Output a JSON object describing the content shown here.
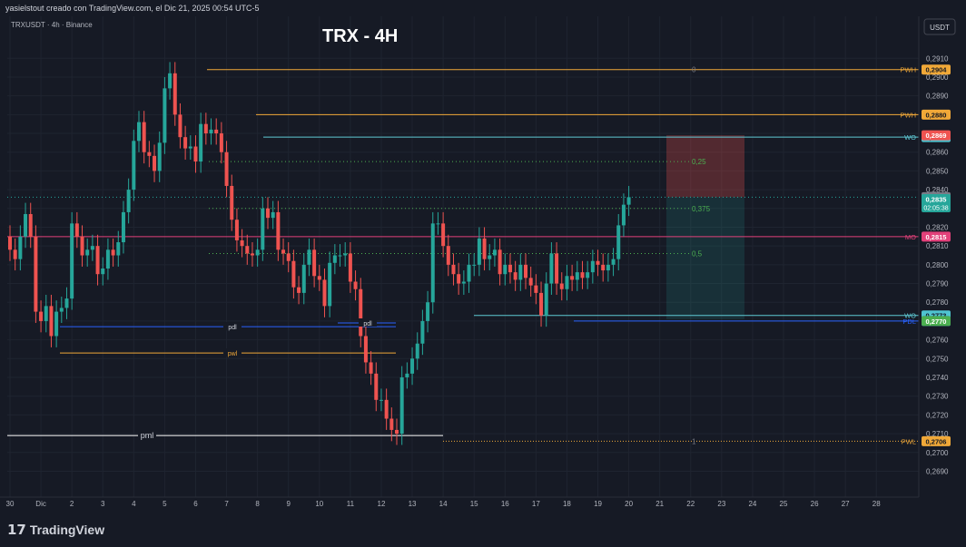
{
  "header": {
    "attribution": "yasielstout creado con TradingView.com, el Dic 21, 2025 00:54 UTC-5",
    "symbol_info": "TRXUSDT · 4h · Binance",
    "title": "TRX - 4H",
    "currency_button": "USDT"
  },
  "footer": {
    "brand": "TradingView",
    "logo_glyph": "17"
  },
  "colors": {
    "bg": "#161a25",
    "up": "#26a69a",
    "down": "#ef5350",
    "grid": "#1f2430"
  },
  "chart_data": {
    "type": "candlestick",
    "title": "TRX - 4H",
    "ylim": [
      0.2682,
      0.2914
    ],
    "y_ticks": [
      "0,2910",
      "0,2900",
      "0,2890",
      "0,2880",
      "0,2870",
      "0,2860",
      "0,2850",
      "0,2840",
      "0,2830",
      "0,2820",
      "0,2810",
      "0,2800",
      "0,2790",
      "0,2780",
      "0,2770",
      "0,2760",
      "0,2750",
      "0,2740",
      "0,2730",
      "0,2720",
      "0,2710",
      "0,2700",
      "0,2690"
    ],
    "x_labels": [
      {
        "label": "30",
        "i": 0
      },
      {
        "label": "Dic",
        "i": 6
      },
      {
        "label": "2",
        "i": 12
      },
      {
        "label": "3",
        "i": 18
      },
      {
        "label": "4",
        "i": 24
      },
      {
        "label": "5",
        "i": 30
      },
      {
        "label": "6",
        "i": 36
      },
      {
        "label": "7",
        "i": 42
      },
      {
        "label": "8",
        "i": 48
      },
      {
        "label": "9",
        "i": 54
      },
      {
        "label": "10",
        "i": 60
      },
      {
        "label": "11",
        "i": 66
      },
      {
        "label": "12",
        "i": 72
      },
      {
        "label": "13",
        "i": 78
      },
      {
        "label": "14",
        "i": 84
      },
      {
        "label": "15",
        "i": 90
      },
      {
        "label": "16",
        "i": 96
      },
      {
        "label": "17",
        "i": 102
      },
      {
        "label": "18",
        "i": 108
      },
      {
        "label": "19",
        "i": 114
      },
      {
        "label": "20",
        "i": 120
      },
      {
        "label": "21",
        "i": 126
      },
      {
        "label": "22",
        "i": 132
      },
      {
        "label": "23",
        "i": 138
      },
      {
        "label": "24",
        "i": 144
      },
      {
        "label": "25",
        "i": 150
      },
      {
        "label": "26",
        "i": 156
      },
      {
        "label": "27",
        "i": 162
      },
      {
        "label": "28",
        "i": 168
      }
    ],
    "ohlc_close": [
      0.2808,
      0.2803,
      0.2815,
      0.2827,
      0.2815,
      0.2775,
      0.277,
      0.2778,
      0.2762,
      0.2775,
      0.2777,
      0.2782,
      0.2822,
      0.2815,
      0.2805,
      0.2808,
      0.281,
      0.2795,
      0.2798,
      0.2808,
      0.2805,
      0.2812,
      0.2828,
      0.284,
      0.2866,
      0.2876,
      0.286,
      0.2858,
      0.285,
      0.2865,
      0.2894,
      0.2902,
      0.288,
      0.2868,
      0.2862,
      0.2863,
      0.2855,
      0.2875,
      0.287,
      0.2872,
      0.287,
      0.286,
      0.2842,
      0.2824,
      0.2813,
      0.281,
      0.2806,
      0.2805,
      0.2808,
      0.283,
      0.2825,
      0.2828,
      0.2808,
      0.2806,
      0.2802,
      0.2788,
      0.2785,
      0.28,
      0.2808,
      0.2794,
      0.2792,
      0.2778,
      0.2801,
      0.2805,
      0.2805,
      0.2806,
      0.2791,
      0.2787,
      0.2762,
      0.2748,
      0.2742,
      0.2728,
      0.2728,
      0.2718,
      0.2712,
      0.271,
      0.274,
      0.2742,
      0.275,
      0.2758,
      0.277,
      0.278,
      0.2822,
      0.2822,
      0.281,
      0.28,
      0.2795,
      0.279,
      0.2791,
      0.28,
      0.28,
      0.2814,
      0.2803,
      0.2805,
      0.2808,
      0.2795,
      0.28,
      0.2796,
      0.2792,
      0.28,
      0.2793,
      0.2789,
      0.2785,
      0.2773,
      0.279,
      0.2806,
      0.279,
      0.2787,
      0.2794,
      0.2792,
      0.2796,
      0.2793,
      0.2796,
      0.2802,
      0.28,
      0.2797,
      0.28,
      0.2803,
      0.2821,
      0.2832,
      0.2836
    ],
    "ohlc_open": [
      0.2815,
      0.2808,
      0.2803,
      0.2815,
      0.2827,
      0.2815,
      0.2775,
      0.277,
      0.2778,
      0.2762,
      0.2775,
      0.2777,
      0.2782,
      0.2822,
      0.2815,
      0.2805,
      0.2808,
      0.281,
      0.2795,
      0.2798,
      0.2808,
      0.2805,
      0.2812,
      0.2828,
      0.284,
      0.2866,
      0.2876,
      0.286,
      0.2858,
      0.285,
      0.2865,
      0.2894,
      0.2902,
      0.288,
      0.2868,
      0.2862,
      0.2863,
      0.2855,
      0.2875,
      0.287,
      0.2872,
      0.287,
      0.286,
      0.2842,
      0.2824,
      0.2813,
      0.281,
      0.2806,
      0.2805,
      0.2808,
      0.283,
      0.2825,
      0.2828,
      0.2808,
      0.2806,
      0.2802,
      0.2788,
      0.2785,
      0.28,
      0.2808,
      0.2794,
      0.2792,
      0.2778,
      0.2801,
      0.2805,
      0.2805,
      0.2806,
      0.2791,
      0.2787,
      0.2762,
      0.2748,
      0.2742,
      0.2728,
      0.2728,
      0.2718,
      0.2712,
      0.271,
      0.274,
      0.2742,
      0.275,
      0.2758,
      0.277,
      0.278,
      0.2822,
      0.2822,
      0.281,
      0.28,
      0.2795,
      0.279,
      0.2791,
      0.28,
      0.28,
      0.2814,
      0.2803,
      0.2805,
      0.2808,
      0.2795,
      0.28,
      0.2796,
      0.2792,
      0.28,
      0.2793,
      0.2789,
      0.2785,
      0.2773,
      0.279,
      0.2806,
      0.279,
      0.2787,
      0.2794,
      0.2792,
      0.2796,
      0.2793,
      0.2796,
      0.2802,
      0.28,
      0.2797,
      0.28,
      0.2803,
      0.2821,
      0.2832
    ],
    "levels": [
      {
        "label": "PWH",
        "price": 0.2904,
        "tag": "0,2904",
        "color": "#f0a838",
        "style": "solid",
        "tagbg": "#f0a838",
        "tagfg": "#131722"
      },
      {
        "label": "PWH",
        "price": 0.288,
        "tag": "0,2880",
        "color": "#f0a838",
        "style": "solid",
        "tagbg": "#f0a838",
        "tagfg": "#131722"
      },
      {
        "label": "WO",
        "price": 0.2868,
        "tag": "0,2868",
        "color": "#5fc9d4",
        "style": "solid",
        "tagbg": "#4fc3d0",
        "tagfg": "#131722"
      },
      {
        "label": "MO",
        "price": 0.2815,
        "tag": "0,2815",
        "color": "#e2417a",
        "style": "solid",
        "tagbg": "#e2417a",
        "tagfg": "#ffffff"
      },
      {
        "label": "WO",
        "price": 0.2773,
        "tag": "0,2773",
        "color": "#5fc9d4",
        "style": "solid",
        "tagbg": "#4fc3d0",
        "tagfg": "#131722"
      },
      {
        "label": "PDL",
        "price": 0.277,
        "tag": "0,2770",
        "color": "#2962ff",
        "style": "solid",
        "tagbg": "#2962ff",
        "tagfg": "#ffffff"
      },
      {
        "label": "PWL",
        "price": 0.2706,
        "tag": "0,2706",
        "color": "#f0a838",
        "style": "dotted",
        "tagbg": "#f0a838",
        "tagfg": "#131722"
      }
    ],
    "extra_tags": [
      {
        "price": 0.2869,
        "tag": "0,2869",
        "bg": "#ef5350",
        "fg": "#ffffff"
      },
      {
        "price": 0.2836,
        "tag": "0,2836",
        "bg": "#787b86",
        "fg": "#ffffff"
      },
      {
        "price": 0.2835,
        "tag": "0,2835",
        "tag2": "02:05:38",
        "bg": "#26a69a",
        "fg": "#ffffff"
      },
      {
        "price": 0.277,
        "tag": "0,2770",
        "bg": "#4caf50",
        "fg": "#ffffff"
      }
    ],
    "fib_levels": [
      {
        "label": "0",
        "price": 0.2904
      },
      {
        "label": "0,25",
        "price": 0.2855
      },
      {
        "label": "0,375",
        "price": 0.283
      },
      {
        "label": "0,5",
        "price": 0.2806
      },
      {
        "label": "1",
        "price": 0.2706
      }
    ],
    "short_labels": [
      {
        "label": "pdl",
        "price": 0.2767
      },
      {
        "label": "pdl",
        "price": 0.2769
      },
      {
        "label": "pwl",
        "price": 0.2753
      },
      {
        "label": "pml",
        "price": 0.2709
      }
    ],
    "position": {
      "entry": 0.2836,
      "stop": 0.2869,
      "target": 0.2771
    }
  }
}
